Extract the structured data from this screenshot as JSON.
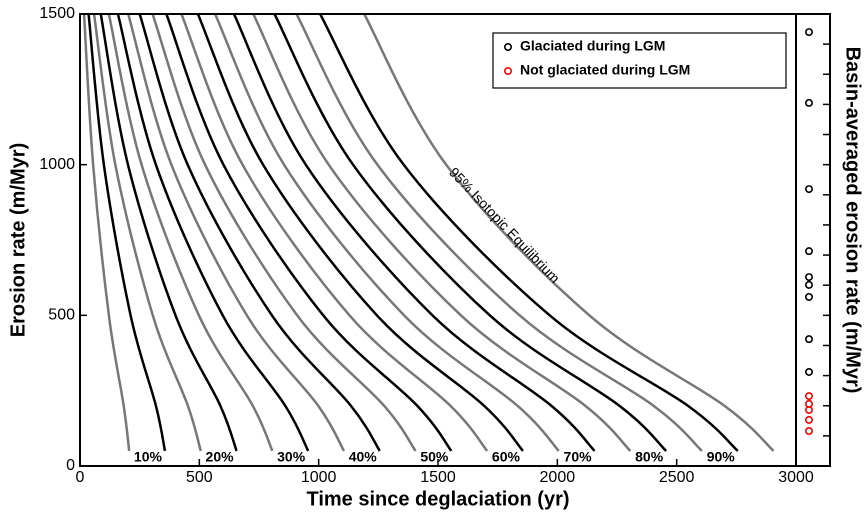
{
  "chart_data": {
    "type": "contour",
    "x_label": "Time since deglaciation (yr)",
    "y_label": "Erosion rate (m/Myr)",
    "y2_label": "Basin-averaged erosion rate (m/Myr)",
    "xlim": [
      0,
      3000
    ],
    "ylim": [
      0,
      1500
    ],
    "xticks": [
      0,
      500,
      1000,
      1500,
      2000,
      2500,
      3000
    ],
    "yticks": [
      0,
      500,
      1000,
      1500
    ],
    "y2lim": [
      0,
      1500
    ],
    "y2ticks": [
      100,
      200,
      300,
      400,
      500,
      600,
      700,
      800,
      900,
      1000,
      1100,
      1200,
      1300,
      1400
    ],
    "y": [
      1500,
      1000,
      500,
      200,
      50
    ],
    "series": [
      {
        "color": "#777777",
        "x": [
          17,
          55,
          121,
          183,
          206
        ]
      },
      {
        "label": "10%",
        "color": "#000000",
        "x": [
          36,
          100,
          212,
          318,
          356
        ]
      },
      {
        "color": "#777777",
        "x": [
          59,
          148,
          305,
          452,
          506
        ]
      },
      {
        "label": "20%",
        "color": "#000000",
        "x": [
          87,
          201,
          400,
          588,
          656
        ]
      },
      {
        "color": "#777777",
        "x": [
          121,
          258,
          498,
          724,
          806
        ]
      },
      {
        "label": "30%",
        "color": "#000000",
        "x": [
          159,
          318,
          598,
          860,
          956
        ]
      },
      {
        "color": "#777777",
        "x": [
          202,
          383,
          699,
          998,
          1106
        ]
      },
      {
        "label": "40%",
        "color": "#000000",
        "x": [
          250,
          451,
          804,
          1135,
          1256
        ]
      },
      {
        "color": "#777777",
        "x": [
          304,
          524,
          910,
          1274,
          1406
        ]
      },
      {
        "label": "50%",
        "color": "#000000",
        "x": [
          362,
          601,
          1019,
          1413,
          1556
        ]
      },
      {
        "color": "#777777",
        "x": [
          425,
          681,
          1129,
          1552,
          1706
        ]
      },
      {
        "label": "60%",
        "color": "#000000",
        "x": [
          494,
          767,
          1244,
          1693,
          1856
        ]
      },
      {
        "color": "#777777",
        "x": [
          566,
          855,
          1358,
          1833,
          2006
        ]
      },
      {
        "label": "70%",
        "color": "#000000",
        "x": [
          645,
          946,
          1477,
          1975,
          2156
        ]
      },
      {
        "color": "#777777",
        "x": [
          726,
          1042,
          1596,
          2117,
          2306
        ]
      },
      {
        "label": "80%",
        "color": "#000000",
        "x": [
          815,
          1144,
          1717,
          2260,
          2456
        ]
      },
      {
        "color": "#777777",
        "x": [
          907,
          1246,
          1842,
          2403,
          2606
        ]
      },
      {
        "label": "90%",
        "color": "#000000",
        "x": [
          1006,
          1356,
          1968,
          2547,
          2756
        ]
      },
      {
        "label": "95% Isotopic Equilibrium",
        "color": "#777777",
        "x": [
          1191,
          1534,
          2134,
          2700,
          2906
        ]
      }
    ],
    "markers": [
      {
        "name": "Glaciated during LGM",
        "color": "#000000",
        "values": [
          1440,
          1205,
          919,
          713,
          627,
          601,
          561,
          421,
          312
        ]
      },
      {
        "name": "Not glaciated during LGM",
        "color": "#ff0000",
        "values": [
          232,
          206,
          186,
          153,
          116
        ]
      }
    ],
    "legend": "upper right"
  }
}
